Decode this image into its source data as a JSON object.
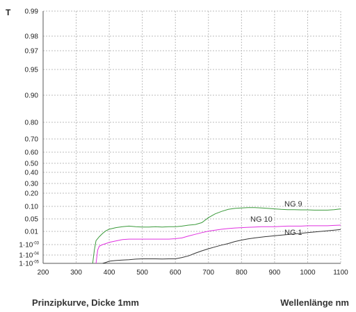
{
  "chart_data": {
    "type": "line",
    "ylabel": "T",
    "xlabel": "Wellenlänge nm",
    "caption": "Prinzipkurve, Dicke 1mm",
    "xlim": [
      200,
      1100
    ],
    "x_ticks": [
      200,
      300,
      400,
      500,
      600,
      700,
      800,
      900,
      1000,
      1100
    ],
    "y_ticks": [
      {
        "value": 1e-05,
        "label": "1·10",
        "exp": "-05"
      },
      {
        "value": 0.0001,
        "label": "1·10",
        "exp": "-04"
      },
      {
        "value": 0.001,
        "label": "1·10",
        "exp": "-03"
      },
      {
        "value": 0.01,
        "label": "0.01"
      },
      {
        "value": 0.05,
        "label": "0.05"
      },
      {
        "value": 0.1,
        "label": "0.10"
      },
      {
        "value": 0.2,
        "label": "0.20"
      },
      {
        "value": 0.3,
        "label": "0.30"
      },
      {
        "value": 0.4,
        "label": "0.40"
      },
      {
        "value": 0.5,
        "label": "0.50"
      },
      {
        "value": 0.6,
        "label": "0.60"
      },
      {
        "value": 0.7,
        "label": "0.70"
      },
      {
        "value": 0.8,
        "label": "0.80"
      },
      {
        "value": 0.9,
        "label": "0.90"
      },
      {
        "value": 0.95,
        "label": "0.95"
      },
      {
        "value": 0.97,
        "label": "0.97"
      },
      {
        "value": 0.98,
        "label": "0.98"
      },
      {
        "value": 0.99,
        "label": "0.99"
      }
    ],
    "grid": true,
    "series": [
      {
        "name": "NG 9",
        "color": "#3a9a3a",
        "x": [
          350,
          355,
          360,
          370,
          380,
          390,
          400,
          420,
          440,
          460,
          480,
          500,
          520,
          540,
          560,
          580,
          600,
          620,
          640,
          660,
          680,
          700,
          720,
          740,
          760,
          780,
          800,
          820,
          840,
          860,
          880,
          900,
          920,
          940,
          960,
          980,
          1000,
          1020,
          1040,
          1060,
          1080,
          1100
        ],
        "y": [
          1e-05,
          0.0003,
          0.002,
          0.004,
          0.007,
          0.012,
          0.017,
          0.022,
          0.025,
          0.027,
          0.025,
          0.024,
          0.024,
          0.025,
          0.024,
          0.025,
          0.025,
          0.027,
          0.03,
          0.032,
          0.038,
          0.055,
          0.07,
          0.08,
          0.088,
          0.092,
          0.094,
          0.095,
          0.095,
          0.094,
          0.092,
          0.09,
          0.088,
          0.087,
          0.087,
          0.086,
          0.086,
          0.085,
          0.085,
          0.085,
          0.087,
          0.09
        ]
      },
      {
        "name": "NG 10",
        "color": "#e030e0",
        "x": [
          360,
          365,
          370,
          380,
          390,
          400,
          420,
          440,
          460,
          480,
          500,
          520,
          540,
          560,
          580,
          600,
          620,
          640,
          660,
          680,
          700,
          720,
          740,
          760,
          780,
          800,
          820,
          840,
          860,
          880,
          900,
          920,
          940,
          960,
          980,
          1000,
          1020,
          1040,
          1060,
          1080,
          1100
        ],
        "y": [
          1e-05,
          0.0003,
          0.0007,
          0.001,
          0.0012,
          0.0015,
          0.0019,
          0.0024,
          0.0026,
          0.0026,
          0.0026,
          0.0026,
          0.0026,
          0.0026,
          0.0026,
          0.0028,
          0.0032,
          0.0045,
          0.006,
          0.008,
          0.011,
          0.014,
          0.017,
          0.019,
          0.021,
          0.022,
          0.023,
          0.024,
          0.025,
          0.025,
          0.025,
          0.026,
          0.027,
          0.027,
          0.027,
          0.028,
          0.028,
          0.028,
          0.028,
          0.029,
          0.03
        ]
      },
      {
        "name": "NG 1",
        "color": "#333333",
        "x": [
          380,
          390,
          400,
          420,
          440,
          460,
          480,
          500,
          520,
          540,
          560,
          580,
          600,
          620,
          640,
          660,
          680,
          700,
          720,
          740,
          760,
          780,
          800,
          820,
          840,
          860,
          880,
          900,
          920,
          940,
          960,
          980,
          1000,
          1020,
          1040,
          1060,
          1080,
          1100
        ],
        "y": [
          1e-05,
          1.3e-05,
          1.8e-05,
          2.2e-05,
          2.5e-05,
          2.7e-05,
          3.2e-05,
          3.5e-05,
          3.5e-05,
          3.5e-05,
          3.3e-05,
          3.5e-05,
          3.5e-05,
          5e-05,
          8e-05,
          0.00015,
          0.00025,
          0.0004,
          0.0006,
          0.0009,
          0.0012,
          0.0017,
          0.0022,
          0.0027,
          0.0032,
          0.0037,
          0.0042,
          0.0047,
          0.0052,
          0.0058,
          0.0065,
          0.0072,
          0.008,
          0.009,
          0.01,
          0.012,
          0.014,
          0.016
        ]
      }
    ]
  }
}
